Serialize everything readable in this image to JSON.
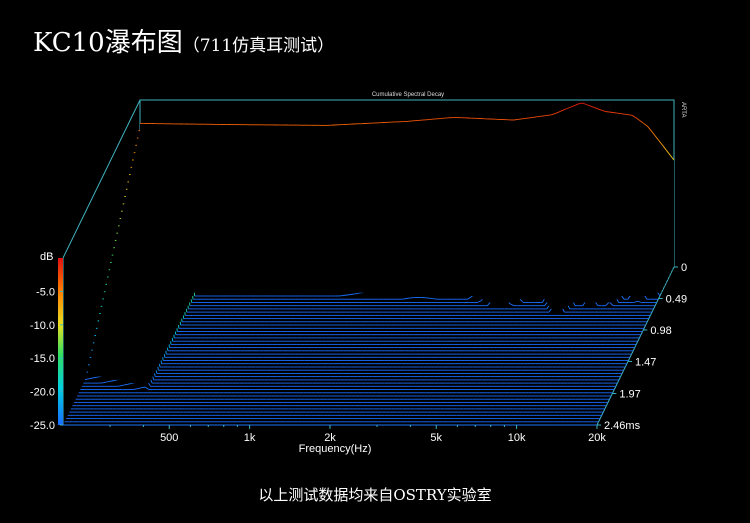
{
  "header": {
    "title_main": "KC10瀑布图",
    "title_sub": "（711仿真耳测试）"
  },
  "footer": {
    "text": "以上测试数据均来自OSTRY实验室"
  },
  "chart_data": {
    "type": "waterfall",
    "title": "Cumulative Spectral Decay",
    "watermark": "ARTA",
    "xlabel": "Frequency(Hz)",
    "ylabel": "dB",
    "xscale": "log",
    "xlim": [
      200,
      20000
    ],
    "ylim": [
      -25,
      0
    ],
    "x_ticks": [
      {
        "value": 500,
        "label": "500"
      },
      {
        "value": 1000,
        "label": "1k"
      },
      {
        "value": 2000,
        "label": "2k"
      },
      {
        "value": 5000,
        "label": "5k"
      },
      {
        "value": 10000,
        "label": "10k"
      },
      {
        "value": 20000,
        "label": "20k"
      }
    ],
    "y_ticks": [
      {
        "value": -5,
        "label": "-5.0"
      },
      {
        "value": -10,
        "label": "-10.0"
      },
      {
        "value": -15,
        "label": "-15.0"
      },
      {
        "value": -20,
        "label": "-20.0"
      },
      {
        "value": -25,
        "label": "-25.0"
      }
    ],
    "time_ticks": [
      {
        "value": 0,
        "label": "0"
      },
      {
        "value": 0.49,
        "label": "0.49"
      },
      {
        "value": 0.98,
        "label": "0.98"
      },
      {
        "value": 1.47,
        "label": "1.47"
      },
      {
        "value": 1.97,
        "label": "1.97"
      },
      {
        "value": 2.46,
        "label": "2.46ms"
      }
    ],
    "time_range_ms": [
      0,
      2.46
    ],
    "slice_count": 50,
    "color_scale": [
      "#1a6cff",
      "#00d0e0",
      "#30e060",
      "#e8e020",
      "#ff8000",
      "#e01010"
    ],
    "initial_response_db": [
      {
        "hz": 200,
        "db": -3.5
      },
      {
        "hz": 300,
        "db": -3.6
      },
      {
        "hz": 500,
        "db": -3.7
      },
      {
        "hz": 1000,
        "db": -3.8
      },
      {
        "hz": 2000,
        "db": -3.2
      },
      {
        "hz": 3000,
        "db": -2.6
      },
      {
        "hz": 5000,
        "db": -3.0
      },
      {
        "hz": 7000,
        "db": -2.2
      },
      {
        "hz": 9000,
        "db": -0.4
      },
      {
        "hz": 11000,
        "db": -1.7
      },
      {
        "hz": 14000,
        "db": -2.3
      },
      {
        "hz": 16000,
        "db": -4.0
      },
      {
        "hz": 20000,
        "db": -9.0
      }
    ]
  }
}
